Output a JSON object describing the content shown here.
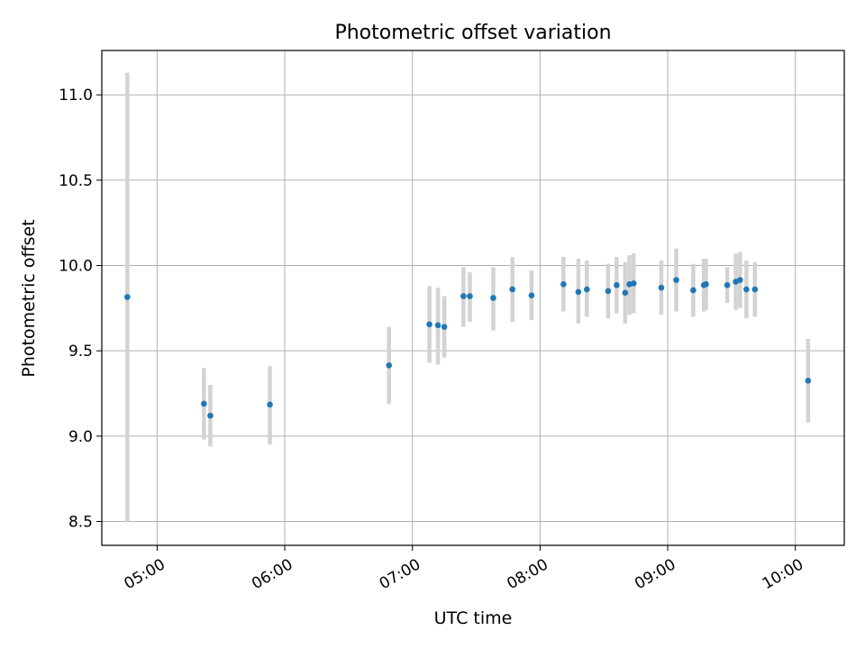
{
  "chart_data": {
    "type": "scatter",
    "title": "Photometric offset variation",
    "xlabel": "UTC time",
    "ylabel": "Photometric offset",
    "xlim": [
      "04:34",
      "10:23"
    ],
    "ylim": [
      8.36,
      11.26
    ],
    "x_ticks": [
      "05:00",
      "06:00",
      "07:00",
      "08:00",
      "09:00",
      "10:00"
    ],
    "y_ticks": [
      "8.5",
      "9.0",
      "9.5",
      "10.0",
      "10.5",
      "11.0"
    ],
    "grid": true,
    "colors": {
      "point": "#1f77b4",
      "error_bar": "#d3d3d3",
      "grid": "#b0b0b0"
    },
    "points": [
      {
        "x": "04:46",
        "y": 9.815,
        "low": 8.5,
        "high": 11.13
      },
      {
        "x": "05:22",
        "y": 9.19,
        "low": 8.98,
        "high": 9.4
      },
      {
        "x": "05:25",
        "y": 9.12,
        "low": 8.94,
        "high": 9.3
      },
      {
        "x": "05:53",
        "y": 9.185,
        "low": 8.95,
        "high": 9.41
      },
      {
        "x": "06:49",
        "y": 9.415,
        "low": 9.19,
        "high": 9.64
      },
      {
        "x": "07:08",
        "y": 9.655,
        "low": 9.43,
        "high": 9.88
      },
      {
        "x": "07:12",
        "y": 9.65,
        "low": 9.42,
        "high": 9.87
      },
      {
        "x": "07:15",
        "y": 9.64,
        "low": 9.46,
        "high": 9.82
      },
      {
        "x": "07:24",
        "y": 9.82,
        "low": 9.64,
        "high": 9.99
      },
      {
        "x": "07:27",
        "y": 9.82,
        "low": 9.67,
        "high": 9.96
      },
      {
        "x": "07:38",
        "y": 9.81,
        "low": 9.62,
        "high": 9.99
      },
      {
        "x": "07:47",
        "y": 9.86,
        "low": 9.67,
        "high": 10.05
      },
      {
        "x": "07:56",
        "y": 9.825,
        "low": 9.68,
        "high": 9.97
      },
      {
        "x": "08:11",
        "y": 9.89,
        "low": 9.73,
        "high": 10.05
      },
      {
        "x": "08:18",
        "y": 9.845,
        "low": 9.66,
        "high": 10.04
      },
      {
        "x": "08:22",
        "y": 9.86,
        "low": 9.7,
        "high": 10.03
      },
      {
        "x": "08:32",
        "y": 9.85,
        "low": 9.69,
        "high": 10.01
      },
      {
        "x": "08:36",
        "y": 9.885,
        "low": 9.72,
        "high": 10.05
      },
      {
        "x": "08:40",
        "y": 9.84,
        "low": 9.66,
        "high": 10.02
      },
      {
        "x": "08:42",
        "y": 9.89,
        "low": 9.71,
        "high": 10.06
      },
      {
        "x": "08:44",
        "y": 9.895,
        "low": 9.72,
        "high": 10.07
      },
      {
        "x": "08:57",
        "y": 9.87,
        "low": 9.71,
        "high": 10.03
      },
      {
        "x": "09:04",
        "y": 9.915,
        "low": 9.73,
        "high": 10.1
      },
      {
        "x": "09:12",
        "y": 9.855,
        "low": 9.7,
        "high": 10.01
      },
      {
        "x": "09:17",
        "y": 9.885,
        "low": 9.73,
        "high": 10.04
      },
      {
        "x": "09:18",
        "y": 9.89,
        "low": 9.74,
        "high": 10.04
      },
      {
        "x": "09:28",
        "y": 9.885,
        "low": 9.78,
        "high": 9.99
      },
      {
        "x": "09:32",
        "y": 9.905,
        "low": 9.74,
        "high": 10.07
      },
      {
        "x": "09:34",
        "y": 9.915,
        "low": 9.75,
        "high": 10.08
      },
      {
        "x": "09:37",
        "y": 9.86,
        "low": 9.69,
        "high": 10.03
      },
      {
        "x": "09:41",
        "y": 9.86,
        "low": 9.7,
        "high": 10.02
      },
      {
        "x": "10:06",
        "y": 9.325,
        "low": 9.08,
        "high": 9.57
      }
    ]
  }
}
